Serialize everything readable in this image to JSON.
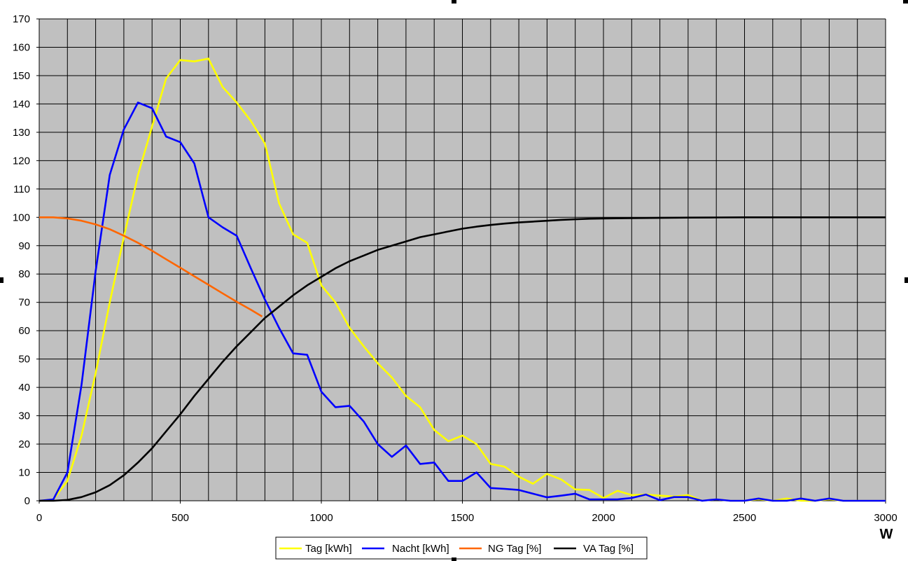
{
  "chart_data": {
    "type": "line",
    "xlabel": "W",
    "ylabel": "",
    "xlim": [
      0,
      3000
    ],
    "ylim": [
      0,
      170
    ],
    "x_ticks": [
      "0",
      "500",
      "1000",
      "1500",
      "2000",
      "2500",
      "3000"
    ],
    "y_ticks": [
      "0",
      "10",
      "20",
      "30",
      "40",
      "50",
      "60",
      "70",
      "80",
      "90",
      "100",
      "110",
      "120",
      "130",
      "140",
      "150",
      "160",
      "170"
    ],
    "grid": true,
    "plot_background": "#c0c0c0",
    "legend_position": "bottom",
    "series": [
      {
        "name": "Tag [kWh]",
        "color": "#ffff00",
        "points": [
          [
            0,
            0
          ],
          [
            50,
            0.5
          ],
          [
            100,
            7
          ],
          [
            150,
            23
          ],
          [
            200,
            45
          ],
          [
            250,
            70
          ],
          [
            300,
            93
          ],
          [
            350,
            115
          ],
          [
            400,
            132
          ],
          [
            450,
            149
          ],
          [
            500,
            155.5
          ],
          [
            550,
            155
          ],
          [
            600,
            156
          ],
          [
            650,
            146
          ],
          [
            700,
            140.5
          ],
          [
            750,
            134
          ],
          [
            800,
            126
          ],
          [
            850,
            105
          ],
          [
            900,
            94
          ],
          [
            950,
            91
          ],
          [
            1000,
            76
          ],
          [
            1050,
            70
          ],
          [
            1100,
            61
          ],
          [
            1150,
            54.5
          ],
          [
            1200,
            48.5
          ],
          [
            1250,
            43.5
          ],
          [
            1300,
            37
          ],
          [
            1350,
            33
          ],
          [
            1400,
            25
          ],
          [
            1450,
            21
          ],
          [
            1500,
            23
          ],
          [
            1550,
            20
          ],
          [
            1600,
            13
          ],
          [
            1650,
            12
          ],
          [
            1700,
            8.5
          ],
          [
            1750,
            6
          ],
          [
            1800,
            9.5
          ],
          [
            1850,
            7.5
          ],
          [
            1900,
            4
          ],
          [
            1950,
            3.8
          ],
          [
            2000,
            1
          ],
          [
            2050,
            3.5
          ],
          [
            2100,
            2
          ],
          [
            2150,
            2.2
          ],
          [
            2200,
            1.8
          ],
          [
            2250,
            1.5
          ],
          [
            2300,
            2
          ],
          [
            2350,
            0
          ],
          [
            2400,
            0.5
          ],
          [
            2450,
            0
          ],
          [
            2500,
            0
          ],
          [
            2550,
            0.5
          ],
          [
            2600,
            0
          ],
          [
            2650,
            0.8
          ],
          [
            2700,
            0
          ],
          [
            2750,
            0
          ],
          [
            2800,
            0.5
          ],
          [
            2850,
            0
          ],
          [
            2900,
            0
          ],
          [
            2950,
            0
          ],
          [
            3000,
            0
          ]
        ]
      },
      {
        "name": "Nacht [kWh]",
        "color": "#0000ff",
        "points": [
          [
            0,
            0
          ],
          [
            50,
            0.5
          ],
          [
            100,
            10
          ],
          [
            150,
            41
          ],
          [
            200,
            81
          ],
          [
            250,
            115
          ],
          [
            300,
            131
          ],
          [
            350,
            140.5
          ],
          [
            400,
            138.5
          ],
          [
            450,
            128.5
          ],
          [
            500,
            126.5
          ],
          [
            550,
            119
          ],
          [
            600,
            100
          ],
          [
            650,
            96.5
          ],
          [
            700,
            93.5
          ],
          [
            750,
            82
          ],
          [
            800,
            71
          ],
          [
            850,
            61
          ],
          [
            900,
            52
          ],
          [
            950,
            51.5
          ],
          [
            1000,
            38.5
          ],
          [
            1050,
            33
          ],
          [
            1100,
            33.5
          ],
          [
            1150,
            28
          ],
          [
            1200,
            20
          ],
          [
            1250,
            15.5
          ],
          [
            1300,
            19.5
          ],
          [
            1350,
            13
          ],
          [
            1400,
            13.5
          ],
          [
            1450,
            7
          ],
          [
            1500,
            7
          ],
          [
            1550,
            10
          ],
          [
            1600,
            4.5
          ],
          [
            1650,
            4.2
          ],
          [
            1700,
            3.8
          ],
          [
            1750,
            2.5
          ],
          [
            1800,
            1.2
          ],
          [
            1850,
            1.8
          ],
          [
            1900,
            2.5
          ],
          [
            1950,
            0.5
          ],
          [
            2000,
            0.5
          ],
          [
            2050,
            0.5
          ],
          [
            2100,
            1
          ],
          [
            2150,
            2.2
          ],
          [
            2200,
            0.2
          ],
          [
            2250,
            1.3
          ],
          [
            2300,
            1.3
          ],
          [
            2350,
            0
          ],
          [
            2400,
            0.5
          ],
          [
            2450,
            0
          ],
          [
            2500,
            0
          ],
          [
            2550,
            0.8
          ],
          [
            2600,
            0
          ],
          [
            2650,
            0
          ],
          [
            2700,
            0.8
          ],
          [
            2750,
            0
          ],
          [
            2800,
            0.8
          ],
          [
            2850,
            0
          ],
          [
            2900,
            0
          ],
          [
            2950,
            0
          ],
          [
            3000,
            0
          ]
        ]
      },
      {
        "name": "NG Tag [%]",
        "color": "#ff6600",
        "points": [
          [
            0,
            100
          ],
          [
            50,
            100
          ],
          [
            100,
            99.6
          ],
          [
            150,
            98.8
          ],
          [
            200,
            97.5
          ],
          [
            250,
            95.8
          ],
          [
            300,
            93.5
          ],
          [
            350,
            91
          ],
          [
            400,
            88.2
          ],
          [
            450,
            85.2
          ],
          [
            500,
            82.2
          ],
          [
            550,
            79.2
          ],
          [
            600,
            76.2
          ],
          [
            650,
            73.2
          ],
          [
            700,
            70.2
          ],
          [
            750,
            67.4
          ],
          [
            790,
            65
          ]
        ]
      },
      {
        "name": "VA Tag [%]",
        "color": "#000000",
        "points": [
          [
            0,
            0
          ],
          [
            50,
            0
          ],
          [
            100,
            0.3
          ],
          [
            150,
            1.3
          ],
          [
            200,
            3
          ],
          [
            250,
            5.5
          ],
          [
            300,
            9
          ],
          [
            350,
            13.5
          ],
          [
            400,
            18.5
          ],
          [
            450,
            24.5
          ],
          [
            500,
            30.5
          ],
          [
            550,
            37
          ],
          [
            600,
            43
          ],
          [
            650,
            49
          ],
          [
            700,
            54.5
          ],
          [
            750,
            59.5
          ],
          [
            800,
            64.5
          ],
          [
            850,
            68.5
          ],
          [
            900,
            72.5
          ],
          [
            950,
            76
          ],
          [
            1000,
            79
          ],
          [
            1050,
            82
          ],
          [
            1100,
            84.5
          ],
          [
            1150,
            86.5
          ],
          [
            1200,
            88.5
          ],
          [
            1250,
            90
          ],
          [
            1300,
            91.5
          ],
          [
            1350,
            93
          ],
          [
            1400,
            94
          ],
          [
            1450,
            95
          ],
          [
            1500,
            96
          ],
          [
            1550,
            96.7
          ],
          [
            1600,
            97.3
          ],
          [
            1650,
            97.8
          ],
          [
            1700,
            98.2
          ],
          [
            1750,
            98.5
          ],
          [
            1800,
            98.8
          ],
          [
            1850,
            99.1
          ],
          [
            1900,
            99.3
          ],
          [
            1950,
            99.5
          ],
          [
            2000,
            99.6
          ],
          [
            2100,
            99.7
          ],
          [
            2200,
            99.8
          ],
          [
            2300,
            99.9
          ],
          [
            2400,
            99.95
          ],
          [
            2500,
            100
          ],
          [
            2600,
            100
          ],
          [
            2700,
            100
          ],
          [
            2800,
            100
          ],
          [
            2900,
            100
          ],
          [
            3000,
            100
          ]
        ]
      }
    ]
  }
}
